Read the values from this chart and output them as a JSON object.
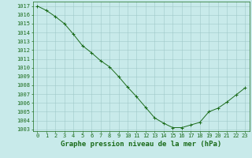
{
  "x": [
    0,
    1,
    2,
    3,
    4,
    5,
    6,
    7,
    8,
    9,
    10,
    11,
    12,
    13,
    14,
    15,
    16,
    17,
    18,
    19,
    20,
    21,
    22,
    23
  ],
  "y": [
    1017,
    1016.5,
    1015.8,
    1015,
    1013.8,
    1012.5,
    1011.7,
    1010.8,
    1010.1,
    1009,
    1007.8,
    1006.7,
    1005.5,
    1004.3,
    1003.7,
    1003.2,
    1003.2,
    1003.5,
    1003.8,
    1005,
    1005.4,
    1006.1,
    1006.9,
    1007.7
  ],
  "line_color": "#1a6b1a",
  "marker": "+",
  "marker_size": 3,
  "bg_color": "#c8eaea",
  "grid_color": "#a0c8c8",
  "title": "Graphe pression niveau de la mer (hPa)",
  "ylim": [
    1002.8,
    1017.5
  ],
  "xlim": [
    -0.5,
    23.5
  ],
  "yticks": [
    1003,
    1004,
    1005,
    1006,
    1007,
    1008,
    1009,
    1010,
    1011,
    1012,
    1013,
    1014,
    1015,
    1016,
    1017
  ],
  "xticks": [
    0,
    1,
    2,
    3,
    4,
    5,
    6,
    7,
    8,
    9,
    10,
    11,
    12,
    13,
    14,
    15,
    16,
    17,
    18,
    19,
    20,
    21,
    22,
    23
  ],
  "tick_label_size": 5.0,
  "title_fontsize": 6.5,
  "title_fontweight": "bold",
  "linewidth": 0.7,
  "marker_edge_width": 0.7
}
